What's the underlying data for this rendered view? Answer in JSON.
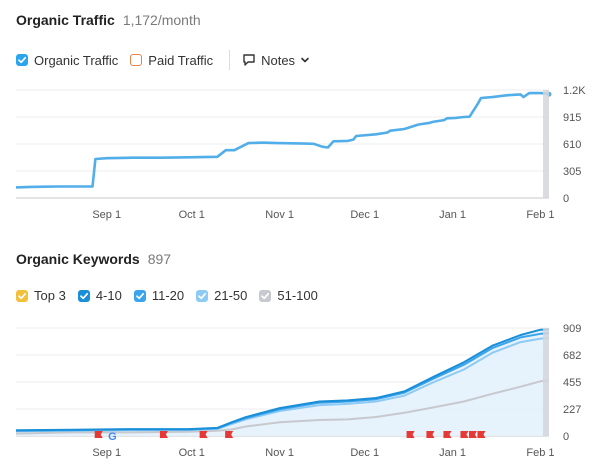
{
  "traffic": {
    "title": "Organic Traffic",
    "summary": "1,172/month",
    "legend": [
      {
        "label": "Organic Traffic",
        "checked": true,
        "color": "#2ba5ed"
      },
      {
        "label": "Paid Traffic",
        "checked": false,
        "color": "#e0864a"
      }
    ],
    "notes_label": "Notes",
    "chart_data": {
      "type": "line",
      "x_tick_labels": [
        "Sep 1",
        "Oct 1",
        "Nov 1",
        "Dec 1",
        "Jan 1",
        "Feb 1"
      ],
      "y_tick_labels": [
        "1.2K",
        "915",
        "610",
        "305",
        "0"
      ],
      "ylim": [
        0,
        1220
      ],
      "grid": true,
      "series": [
        {
          "color": "#52aee8",
          "x": [
            "Jul 31",
            "Aug 5",
            "Aug 10",
            "Aug 15",
            "Aug 20",
            "Aug 25",
            "Aug 27",
            "Aug 28",
            "Sep 1",
            "Sep 10",
            "Sep 20",
            "Sep 30",
            "Oct 10",
            "Oct 13",
            "Oct 16",
            "Oct 21",
            "Oct 25",
            "Oct 26",
            "Oct 27",
            "Oct 31",
            "Nov 5",
            "Nov 10",
            "Nov 13",
            "Nov 16",
            "Nov 17",
            "Nov 18",
            "Nov 20",
            "Nov 25",
            "Nov 27",
            "Nov 28",
            "Dec 5",
            "Dec 9",
            "Dec 10",
            "Dec 15",
            "Dec 20",
            "Dec 24",
            "Dec 25",
            "Dec 29",
            "Dec 30",
            "Jan 2",
            "Jan 5",
            "Jan 7",
            "Jan 8",
            "Jan 10",
            "Jan 11",
            "Jan 15",
            "Jan 20",
            "Jan 25",
            "Jan 26",
            "Jan 28",
            "Feb 1",
            "Feb 3",
            "Feb 4"
          ],
          "values": [
            120,
            125,
            128,
            130,
            130,
            130,
            130,
            440,
            450,
            455,
            455,
            460,
            465,
            540,
            540,
            620,
            625,
            625,
            625,
            620,
            618,
            615,
            612,
            580,
            575,
            570,
            640,
            645,
            660,
            700,
            720,
            740,
            760,
            780,
            830,
            850,
            860,
            880,
            900,
            905,
            915,
            918,
            970,
            1070,
            1130,
            1140,
            1160,
            1170,
            1140,
            1185,
            1185,
            1180,
            1172
          ]
        }
      ]
    }
  },
  "keywords": {
    "title": "Organic Keywords",
    "summary": "897",
    "legend": [
      {
        "label": "Top 3",
        "checked": true,
        "color": "#f3c03a"
      },
      {
        "label": "4-10",
        "checked": true,
        "color": "#1a8fd8"
      },
      {
        "label": "11-20",
        "checked": true,
        "color": "#3aa4ec"
      },
      {
        "label": "21-50",
        "checked": true,
        "color": "#8dcaf4"
      },
      {
        "label": "51-100",
        "checked": true,
        "color": "#c7c9cf"
      }
    ],
    "chart_data": {
      "type": "area",
      "x_tick_labels": [
        "Sep 1",
        "Oct 1",
        "Nov 1",
        "Dec 1",
        "Jan 1",
        "Feb 1"
      ],
      "y_tick_labels": [
        "909",
        "682",
        "455",
        "227",
        "0"
      ],
      "ylim": [
        0,
        909
      ],
      "grid": true,
      "series": [
        {
          "label": "51-100",
          "color": "#c7c9cf",
          "x": [
            "Jul 31",
            "Aug 20",
            "Sep 10",
            "Sep 30",
            "Oct 10",
            "Oct 15",
            "Oct 20",
            "Nov 1",
            "Nov 15",
            "Nov 25",
            "Dec 5",
            "Dec 15",
            "Dec 25",
            "Jan 5",
            "Jan 15",
            "Jan 25",
            "Feb 1",
            "Feb 4"
          ],
          "values": [
            20,
            30,
            30,
            35,
            45,
            55,
            80,
            115,
            135,
            140,
            160,
            195,
            240,
            290,
            355,
            415,
            460,
            470
          ]
        },
        {
          "label": "21-50",
          "color": "#8dcaf4",
          "x": [
            "Jul 31",
            "Aug 20",
            "Sep 10",
            "Sep 30",
            "Oct 10",
            "Oct 15",
            "Oct 20",
            "Nov 1",
            "Nov 15",
            "Nov 25",
            "Dec 5",
            "Dec 15",
            "Dec 25",
            "Jan 5",
            "Jan 15",
            "Jan 25",
            "Feb 1",
            "Feb 4"
          ],
          "values": [
            40,
            45,
            50,
            50,
            60,
            100,
            140,
            210,
            260,
            270,
            290,
            340,
            450,
            560,
            700,
            790,
            820,
            825
          ]
        },
        {
          "label": "11-20",
          "color": "#3aa4ec",
          "x": [
            "Jul 31",
            "Aug 20",
            "Sep 10",
            "Sep 30",
            "Oct 10",
            "Oct 15",
            "Oct 20",
            "Nov 1",
            "Nov 15",
            "Nov 25",
            "Dec 5",
            "Dec 15",
            "Dec 25",
            "Jan 5",
            "Jan 15",
            "Jan 25",
            "Feb 1",
            "Feb 4"
          ],
          "values": [
            45,
            50,
            55,
            55,
            65,
            110,
            150,
            225,
            280,
            290,
            310,
            365,
            480,
            600,
            740,
            830,
            860,
            865
          ]
        },
        {
          "label": "4-10",
          "color": "#1a8fd8",
          "x": [
            "Jul 31",
            "Aug 20",
            "Sep 10",
            "Sep 30",
            "Oct 10",
            "Oct 15",
            "Oct 20",
            "Nov 1",
            "Nov 15",
            "Nov 25",
            "Dec 5",
            "Dec 15",
            "Dec 25",
            "Jan 5",
            "Jan 15",
            "Jan 25",
            "Feb 1",
            "Feb 4"
          ],
          "values": [
            48,
            52,
            58,
            58,
            68,
            115,
            158,
            235,
            290,
            300,
            320,
            375,
            495,
            620,
            760,
            850,
            895,
            897
          ]
        }
      ],
      "event_markers": [
        {
          "date": "Aug 29",
          "type": "flag",
          "color": "#e53935"
        },
        {
          "date": "Sep 3",
          "type": "google",
          "color": "#4285f4"
        },
        {
          "date": "Sep 21",
          "type": "flag",
          "color": "#e53935"
        },
        {
          "date": "Oct 5",
          "type": "flag",
          "color": "#e53935"
        },
        {
          "date": "Oct 14",
          "type": "flag",
          "color": "#e53935"
        },
        {
          "date": "Dec 17",
          "type": "flag",
          "color": "#e53935"
        },
        {
          "date": "Dec 24",
          "type": "flag",
          "color": "#e53935"
        },
        {
          "date": "Dec 30",
          "type": "flag",
          "color": "#e53935"
        },
        {
          "date": "Jan 5",
          "type": "flag",
          "color": "#e53935"
        },
        {
          "date": "Jan 8",
          "type": "flag",
          "color": "#e53935"
        },
        {
          "date": "Jan 11",
          "type": "flag",
          "color": "#e53935"
        }
      ]
    }
  }
}
